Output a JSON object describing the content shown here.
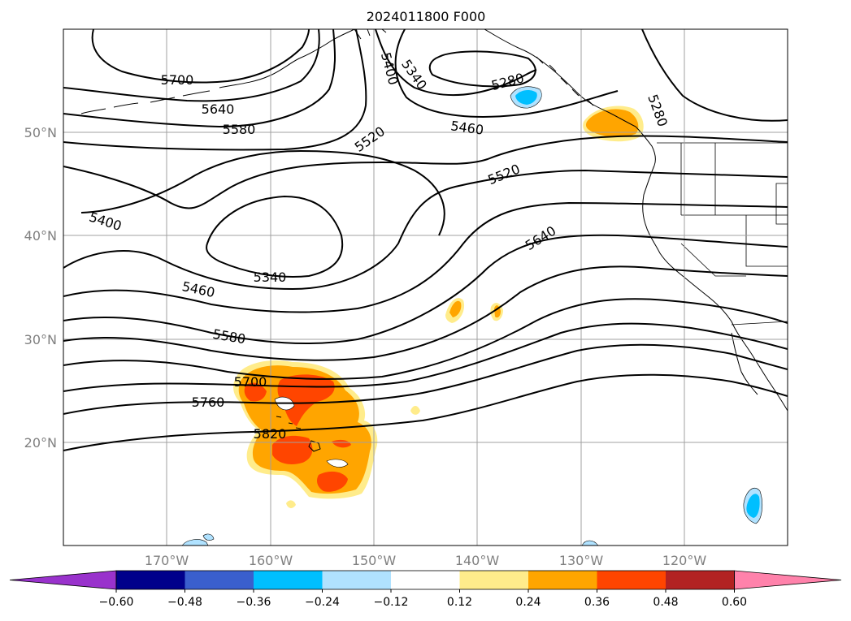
{
  "title": "2024011800 F000",
  "lat_labels": [
    "50°N",
    "40°N",
    "30°N",
    "20°N"
  ],
  "lon_labels": [
    "170°W",
    "160°W",
    "150°W",
    "140°W",
    "130°W",
    "120°W"
  ],
  "colorbar": {
    "labels": [
      "−0.60",
      "−0.48",
      "−0.36",
      "−0.24",
      "−0.12",
      "0.12",
      "0.24",
      "0.36",
      "0.48",
      "0.60"
    ],
    "colors": [
      "#9932cc",
      "#00008b",
      "#3a5fcd",
      "#00bfff",
      "#b0e2ff",
      "#ffffff",
      "#ffec8b",
      "#ffa500",
      "#ff4500",
      "#b22222",
      "#ff82ab"
    ]
  },
  "contour_labels": {
    "c5700a": "5700",
    "c5640": "5640",
    "c5580a": "5580",
    "c5520a": "5520",
    "c5400a": "5400",
    "c5340a": "5340",
    "c5280a": "5280",
    "c5460a": "5460",
    "c5280b": "5280",
    "c5520b": "5520",
    "c5640b": "5640",
    "c5400b": "5400",
    "c5340b": "5340",
    "c5460b": "5460",
    "c5580b": "5580",
    "c5700b": "5700",
    "c5760": "5760",
    "c5820": "5820"
  }
}
